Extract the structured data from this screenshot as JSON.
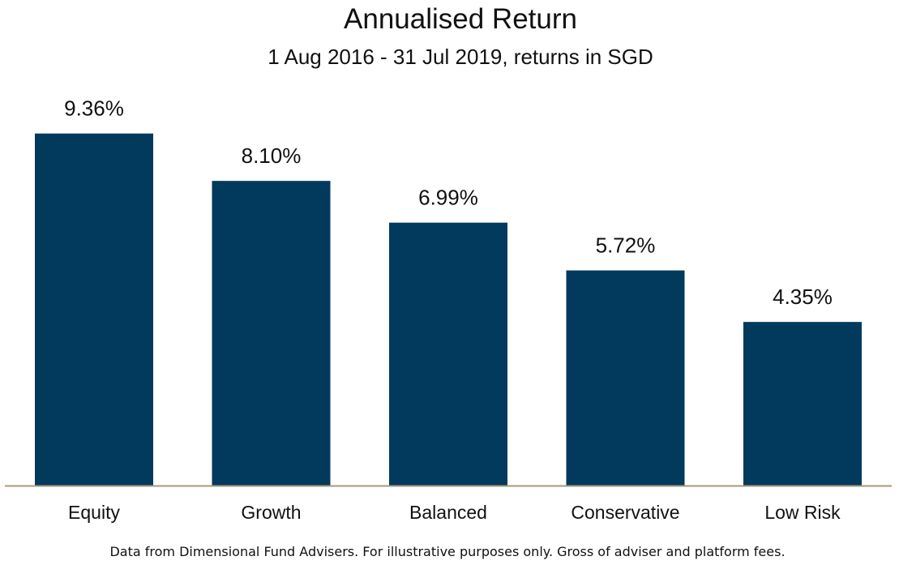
{
  "chart_data": {
    "type": "bar",
    "title": "Annualised Return",
    "subtitle": "1 Aug 2016 - 31 Jul 2019, returns in SGD",
    "categories": [
      "Equity",
      "Growth",
      "Balanced",
      "Conservative",
      "Low Risk"
    ],
    "values": [
      9.36,
      8.1,
      6.99,
      5.72,
      4.35
    ],
    "value_labels": [
      "9.36%",
      "8.10%",
      "6.99%",
      "5.72%",
      "4.35%"
    ],
    "xlabel": "",
    "ylabel": "",
    "ylim": [
      0,
      10
    ],
    "grid": false,
    "legend": "none",
    "bar_color": "#023a5e",
    "axis_color": "#a89878"
  },
  "footnote": "Data from Dimensional Fund Advisers. For illustrative purposes only. Gross of adviser and platform fees."
}
